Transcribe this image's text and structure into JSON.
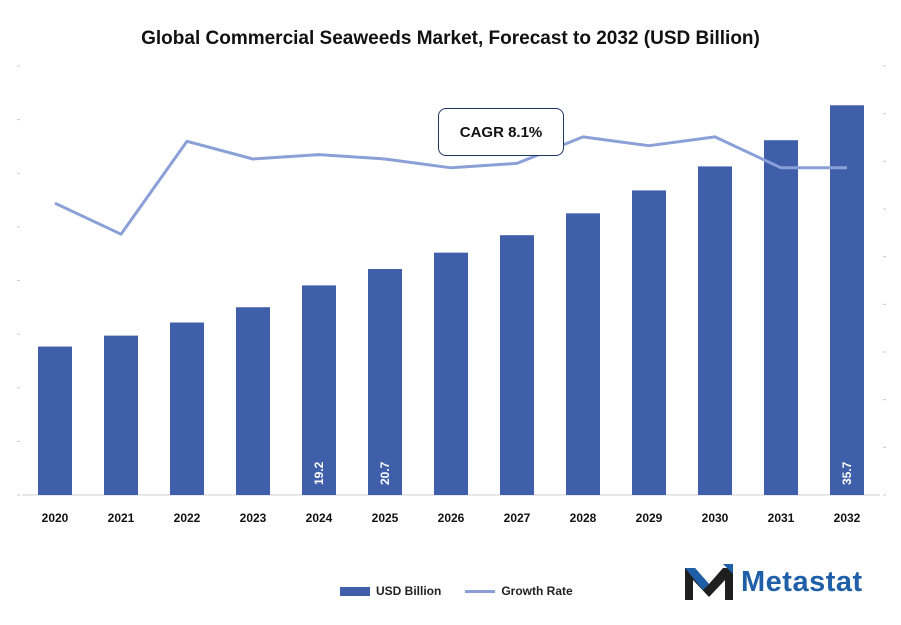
{
  "chart_data": {
    "type": "bar",
    "title": "Global Commercial Seaweeds Market, Forecast to 2032 (USD Billion)",
    "categories": [
      "2020",
      "2021",
      "2022",
      "2023",
      "2024",
      "2025",
      "2026",
      "2027",
      "2028",
      "2029",
      "2030",
      "2031",
      "2032"
    ],
    "series": [
      {
        "name": "USD Billion",
        "type": "bar",
        "color": "#3f5fab",
        "values": [
          13.6,
          14.6,
          15.8,
          17.2,
          19.2,
          20.7,
          22.2,
          23.8,
          25.8,
          27.9,
          30.1,
          32.5,
          35.7
        ],
        "data_labels": [
          "",
          "",
          "",
          "",
          "19.2",
          "20.7",
          "",
          "",
          "",
          "",
          "",
          "",
          "35.7"
        ]
      },
      {
        "name": "Growth Rate",
        "type": "line",
        "color": "#8aa0d6",
        "values": [
          6.6,
          5.9,
          8.0,
          7.6,
          7.7,
          7.6,
          7.4,
          7.5,
          8.1,
          7.9,
          8.1,
          7.4,
          7.4
        ]
      }
    ],
    "ylim": [
      0,
      36
    ],
    "y2lim": [
      0,
      9.5
    ],
    "annotation": "CAGR 8.1%",
    "legend_position": "bottom",
    "grid": false
  },
  "legend": {
    "bar_label": "USD Billion",
    "line_label": "Growth Rate"
  },
  "brand": {
    "name": "Metastat",
    "color": "#1f5fa8",
    "icon": "metastat-m-logo-icon"
  }
}
